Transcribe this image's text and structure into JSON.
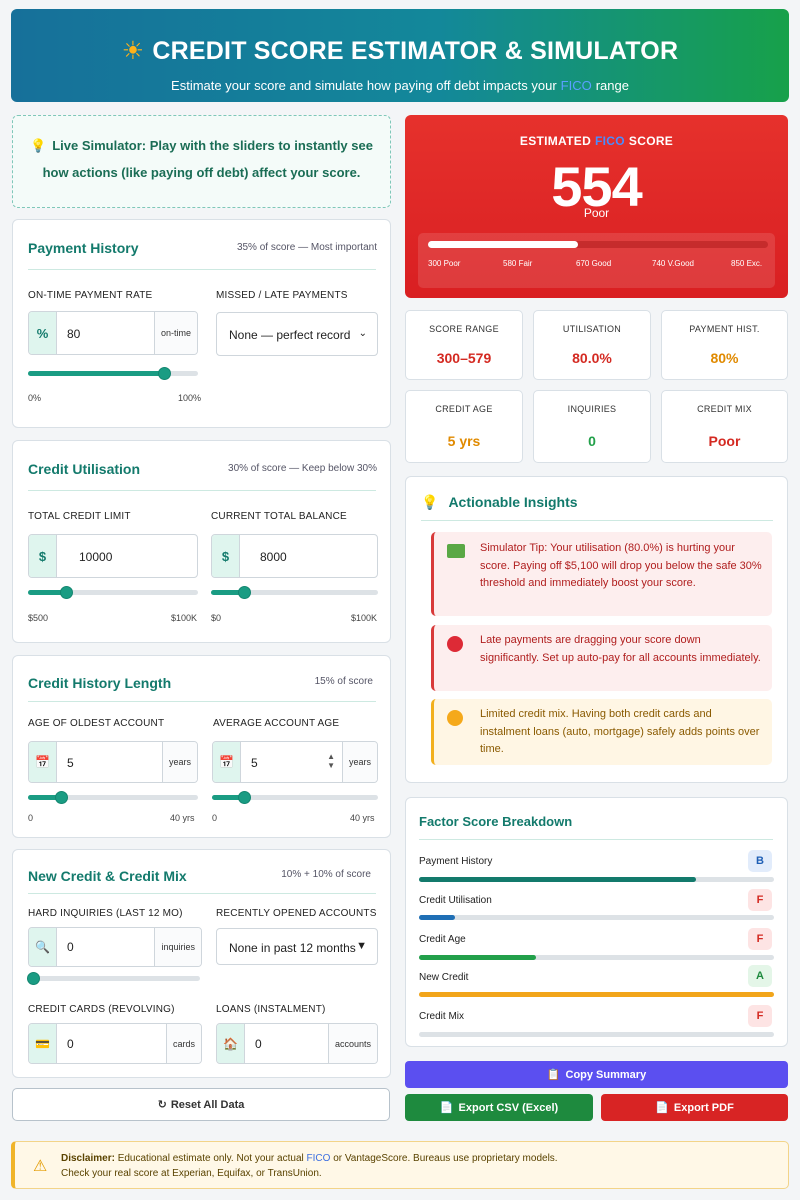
{
  "header": {
    "title": "CREDIT SCORE ESTIMATOR & SIMULATOR",
    "subtitle_before": "Estimate your score and simulate how paying off debt impacts your",
    "subtitle_fico": "FICO",
    "subtitle_after": "range"
  },
  "tip": {
    "line1": "Live Simulator: Play with the sliders to instantly see",
    "line2": "how actions (like paying off debt) affect your score."
  },
  "payment": {
    "title": "Payment History",
    "note": "35% of score — Most important",
    "rate_label": "ON-TIME PAYMENT RATE",
    "rate_prefix": "%",
    "rate_value": "80",
    "rate_suffix": "on-time",
    "rate_slider_value": 80,
    "rate_min": "0%",
    "rate_max": "100%",
    "missed_label": "MISSED / LATE PAYMENTS",
    "missed_value": "None — perfect record"
  },
  "utilisation": {
    "title": "Credit Utilisation",
    "note": "30% of score — Keep below 30%",
    "limit_label": "TOTAL CREDIT LIMIT",
    "limit_prefix": "$",
    "limit_value": "10000",
    "limit_slider_value": 10000,
    "limit_min": "$500",
    "limit_max": "$100K",
    "balance_label": "CURRENT TOTAL BALANCE",
    "balance_prefix": "$",
    "balance_value": "8000",
    "balance_slider_value": 8000,
    "balance_min": "$0",
    "balance_max": "$100K"
  },
  "history": {
    "title": "Credit History Length",
    "note": "15% of score",
    "oldest_label": "AGE OF OLDEST ACCOUNT",
    "oldest_value": "5",
    "oldest_suffix": "years",
    "oldest_min": "0",
    "oldest_max": "40 yrs",
    "avg_label": "AVERAGE ACCOUNT AGE",
    "avg_value": "5",
    "avg_suffix": "years",
    "avg_min": "0",
    "avg_max": "40 yrs"
  },
  "newcredit": {
    "title": "New Credit & Credit Mix",
    "note": "10% + 10% of score",
    "inq_label": "HARD INQUIRIES (LAST 12 MO)",
    "inq_value": "0",
    "inq_suffix": "inquiries",
    "opened_label": "RECENTLY OPENED ACCOUNTS",
    "opened_value": "None in past 12 months",
    "cards_label": "CREDIT CARDS (REVOLVING)",
    "cards_value": "0",
    "cards_suffix": "cards",
    "loans_label": "LOANS (INSTALMENT)",
    "loans_value": "0",
    "loans_suffix": "accounts"
  },
  "reset_label": "Reset All Data",
  "score": {
    "label_before": "ESTIMATED",
    "label_fico": "FICO",
    "label_after": "SCORE",
    "value": "554",
    "rating": "Poor",
    "progress_fraction": 0.44,
    "ticks": [
      "300 Poor",
      "580 Fair",
      "670 Good",
      "740 V.Good",
      "850 Exc."
    ]
  },
  "stats": [
    {
      "label": "SCORE RANGE",
      "value": "300–579",
      "color": "#d42a22"
    },
    {
      "label": "UTILISATION",
      "value": "80.0%",
      "color": "#d42a22"
    },
    {
      "label": "PAYMENT HIST.",
      "value": "80%",
      "color": "#e08a00"
    },
    {
      "label": "CREDIT AGE",
      "value": "5 yrs",
      "color": "#e08a00"
    },
    {
      "label": "INQUIRIES",
      "value": "0",
      "color": "#22a04a"
    },
    {
      "label": "CREDIT MIX",
      "value": "Poor",
      "color": "#d42a22"
    }
  ],
  "insights": {
    "title": "Actionable Insights",
    "items": [
      {
        "icon": "money-icon",
        "text": "Simulator Tip: Your utilisation (80.0%) is hurting your score. Paying off $5,100 will drop you below the safe 30% threshold and immediately boost your score."
      },
      {
        "icon": "red-circle-icon",
        "text": "Late payments are dragging your score down significantly. Set up auto-pay for all accounts immediately."
      },
      {
        "icon": "orange-circle-icon",
        "text": "Limited credit mix. Having both credit cards and instalment loans (auto, mortgage) safely adds points over time."
      }
    ]
  },
  "breakdown": {
    "title": "Factor Score Breakdown",
    "factors": [
      {
        "name": "Payment History",
        "grade": "B",
        "fraction": 0.78,
        "color": "#137a6c"
      },
      {
        "name": "Credit Utilisation",
        "grade": "F",
        "fraction": 0.1,
        "color": "#1f6fb5"
      },
      {
        "name": "Credit Age",
        "grade": "F",
        "fraction": 0.33,
        "color": "#22a04a"
      },
      {
        "name": "New Credit",
        "grade": "A",
        "fraction": 1.0,
        "color": "#f2a51a"
      },
      {
        "name": "Credit Mix",
        "grade": "F",
        "fraction": 0.0,
        "color": "#d42a22"
      }
    ]
  },
  "buttons": {
    "copy": "Copy Summary",
    "csv": "Export CSV (Excel)",
    "pdf": "Export PDF"
  },
  "disclaimer": {
    "bold": "Disclaimer:",
    "line1_a": "Educational estimate only. Not your actual",
    "fico": "FICO",
    "line1_b": "or VantageScore. Bureaus use proprietary models.",
    "line2": "Check your real score at Experian, Equifax, or TransUnion."
  }
}
